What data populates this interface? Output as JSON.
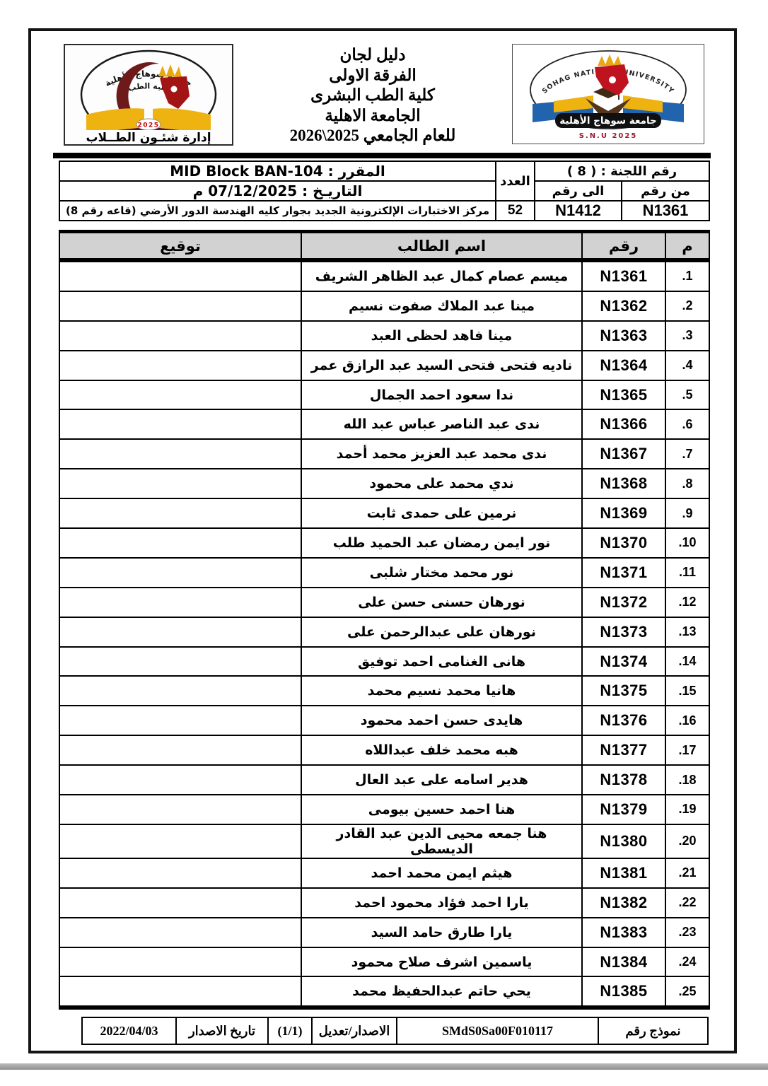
{
  "header": {
    "title_lines": [
      "دليل لجان",
      "الفرقة الاولى",
      "كلية الطب البشرى",
      "الجامعة الاهلية",
      "للعام الجامعي 2025\\2026"
    ],
    "left_logo": {
      "arc_text_top": "جامعة سوهاج الأهلية",
      "arc_text_inner": "كلية الطب",
      "year": "2025",
      "banner": "إدارة شئـون الطــلاب"
    },
    "right_logo": {
      "arc_text": "SOHAG NATIONAL UNIVERSITY",
      "banner": "جامعة سوهاج الأهلية",
      "sub_text": "S.N.U 2025"
    }
  },
  "info": {
    "committee_label": "رقم اللجنة : ( 8 )",
    "from_label": "من رقم",
    "to_label": "الى رقم",
    "from_value": "N1361",
    "to_value": "N1412",
    "count_label": "العدد",
    "count_value": "52",
    "course_label": "المقرر :",
    "course_value": "MID Block BAN-104",
    "date_text": "التاريـخ : 07/12/2025 م",
    "location": "مركز الاختبارات الإلكترونية الجديد بجوار كليه الهندسة الدور الأرضي (قاعه رقم 8)"
  },
  "table": {
    "headers": {
      "serial": "م",
      "id": "رقم",
      "name": "اسم الطالب",
      "signature": "توقيع"
    },
    "rows": [
      {
        "serial": ".1",
        "id": "N1361",
        "name": "ميسم عصام كمال عبد الظاهر الشريف",
        "signature": ""
      },
      {
        "serial": ".2",
        "id": "N1362",
        "name": "مينا عبد الملاك صفوت نسيم",
        "signature": ""
      },
      {
        "serial": ".3",
        "id": "N1363",
        "name": "مينا فاهد لحظى العبد",
        "signature": ""
      },
      {
        "serial": ".4",
        "id": "N1364",
        "name": "ناديه فتحى فتحى السيد عبد الرازق عمر",
        "signature": ""
      },
      {
        "serial": ".5",
        "id": "N1365",
        "name": "ندا سعود احمد الجمال",
        "signature": ""
      },
      {
        "serial": ".6",
        "id": "N1366",
        "name": "ندى عبد الناصر عباس عبد الله",
        "signature": ""
      },
      {
        "serial": ".7",
        "id": "N1367",
        "name": "ندى محمد عبد العزيز محمد أحمد",
        "signature": ""
      },
      {
        "serial": ".8",
        "id": "N1368",
        "name": "ندي محمد على محمود",
        "signature": ""
      },
      {
        "serial": ".9",
        "id": "N1369",
        "name": "نرمين على حمدى ثابت",
        "signature": ""
      },
      {
        "serial": ".10",
        "id": "N1370",
        "name": "نور ايمن رمضان عبد الحميد طلب",
        "signature": ""
      },
      {
        "serial": ".11",
        "id": "N1371",
        "name": "نور محمد مختار شلبى",
        "signature": ""
      },
      {
        "serial": ".12",
        "id": "N1372",
        "name": "نورهان حسنى حسن على",
        "signature": ""
      },
      {
        "serial": ".13",
        "id": "N1373",
        "name": "نورهان على عبدالرحمن على",
        "signature": ""
      },
      {
        "serial": ".14",
        "id": "N1374",
        "name": "هانى الغنامى احمد توفيق",
        "signature": ""
      },
      {
        "serial": ".15",
        "id": "N1375",
        "name": "هانيا محمد نسيم محمد",
        "signature": ""
      },
      {
        "serial": ".16",
        "id": "N1376",
        "name": "هايدى حسن احمد محمود",
        "signature": ""
      },
      {
        "serial": ".17",
        "id": "N1377",
        "name": "هبه محمد خلف عبداللاه",
        "signature": ""
      },
      {
        "serial": ".18",
        "id": "N1378",
        "name": "هدير اسامه على عبد العال",
        "signature": ""
      },
      {
        "serial": ".19",
        "id": "N1379",
        "name": "هنا احمد حسين بيومى",
        "signature": ""
      },
      {
        "serial": ".20",
        "id": "N1380",
        "name": "هنا جمعه محيى الدين عبد القادر الديسطى",
        "signature": ""
      },
      {
        "serial": ".21",
        "id": "N1381",
        "name": "هيثم ايمن محمد احمد",
        "signature": ""
      },
      {
        "serial": ".22",
        "id": "N1382",
        "name": "يارا احمد فؤاد محمود احمد",
        "signature": ""
      },
      {
        "serial": ".23",
        "id": "N1383",
        "name": "يارا طارق حامد السيد",
        "signature": ""
      },
      {
        "serial": ".24",
        "id": "N1384",
        "name": "ياسمين اشرف صلاح محمود",
        "signature": ""
      },
      {
        "serial": ".25",
        "id": "N1385",
        "name": "يحي حاتم عبدالحفيظ محمد",
        "signature": ""
      }
    ]
  },
  "footer": {
    "form_label": "نموذج رقم",
    "form_value": "SMdS0Sa00F010117",
    "issue_label": "الاصدار/تعديل",
    "issue_value": "(1/1)",
    "date_label": "تاريخ الاصدار",
    "date_value": "2022/04/03"
  },
  "colors": {
    "maroon": "#6f1a1a",
    "red": "#b31919",
    "gold": "#eeb211",
    "blue": "#2263ae",
    "brown": "#54361c",
    "header_gray": "#d2d2d2",
    "border_black": "#000000"
  }
}
